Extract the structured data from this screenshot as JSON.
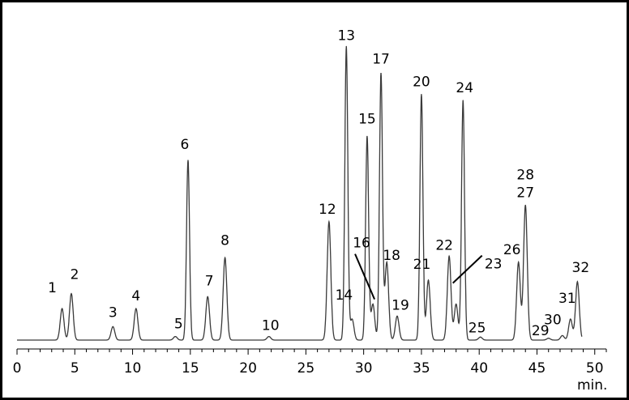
{
  "chart_data": {
    "type": "line",
    "title": "",
    "xlabel": "min.",
    "ylabel": "",
    "xlim": [
      0,
      51
    ],
    "ylim": [
      0,
      100
    ],
    "x_ticks": [
      0,
      5,
      10,
      15,
      20,
      25,
      30,
      35,
      40,
      45,
      50
    ],
    "x_tick_labels": [
      "0",
      "5",
      "10",
      "15",
      "20",
      "25",
      "30",
      "35",
      "40",
      "45",
      "50"
    ],
    "grid": false,
    "colors": {
      "trace": "#3a3a3a",
      "axis": "#000000",
      "border": "#000000"
    },
    "peaks": [
      {
        "id": "1",
        "x": 3.9,
        "y": 10.5
      },
      {
        "id": "2",
        "x": 4.7,
        "y": 15.5
      },
      {
        "id": "3",
        "x": 8.3,
        "y": 4.5
      },
      {
        "id": "4",
        "x": 10.3,
        "y": 10.5
      },
      {
        "id": "5",
        "x": 13.7,
        "y": 1.2
      },
      {
        "id": "6",
        "x": 14.8,
        "y": 60
      },
      {
        "id": "7",
        "x": 16.5,
        "y": 14.5
      },
      {
        "id": "8",
        "x": 18.0,
        "y": 27.5
      },
      {
        "id": "10",
        "x": 21.8,
        "y": 1.2
      },
      {
        "id": "12",
        "x": 27.0,
        "y": 39.5
      },
      {
        "id": "13",
        "x": 28.5,
        "y": 98
      },
      {
        "id": "14",
        "x": 29.0,
        "y": 7
      },
      {
        "id": "15",
        "x": 30.3,
        "y": 68
      },
      {
        "id": "16",
        "x": 30.8,
        "y": 12
      },
      {
        "id": "17",
        "x": 31.5,
        "y": 89
      },
      {
        "id": "18",
        "x": 32.0,
        "y": 26
      },
      {
        "id": "19",
        "x": 32.9,
        "y": 8
      },
      {
        "id": "20",
        "x": 35.0,
        "y": 82
      },
      {
        "id": "21",
        "x": 35.6,
        "y": 20
      },
      {
        "id": "22",
        "x": 37.4,
        "y": 28
      },
      {
        "id": "23",
        "x": 38.0,
        "y": 12
      },
      {
        "id": "24",
        "x": 38.6,
        "y": 80
      },
      {
        "id": "25",
        "x": 40.1,
        "y": 1
      },
      {
        "id": "26",
        "x": 43.4,
        "y": 26
      },
      {
        "id": "27",
        "x": 44.0,
        "y": 45
      },
      {
        "id": "28",
        "x": 44.0,
        "y": 45
      },
      {
        "id": "29",
        "x": 46.0,
        "y": 0.6
      },
      {
        "id": "30",
        "x": 47.2,
        "y": 1.5
      },
      {
        "id": "31",
        "x": 47.9,
        "y": 7
      },
      {
        "id": "32",
        "x": 48.5,
        "y": 19.5
      }
    ]
  }
}
